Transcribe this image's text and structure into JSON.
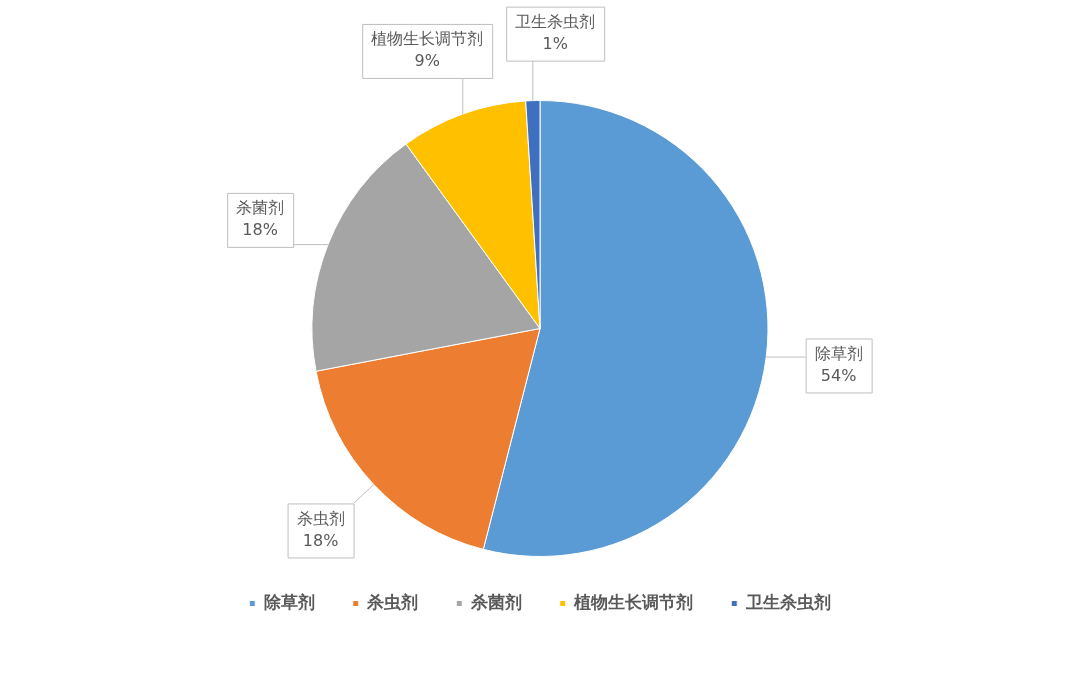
{
  "chart_data": {
    "type": "pie",
    "categories": [
      "除草剂",
      "杀虫剂",
      "杀菌剂",
      "植物生长调节剂",
      "卫生杀虫剂"
    ],
    "values": [
      54,
      18,
      18,
      9,
      1
    ],
    "colors": [
      "#5b9bd5",
      "#ed7d31",
      "#a5a5a5",
      "#ffc000",
      "#3f6fbf"
    ],
    "value_labels": [
      "54%",
      "18%",
      "18%",
      "9%",
      "1%"
    ],
    "legend": "bottom"
  }
}
